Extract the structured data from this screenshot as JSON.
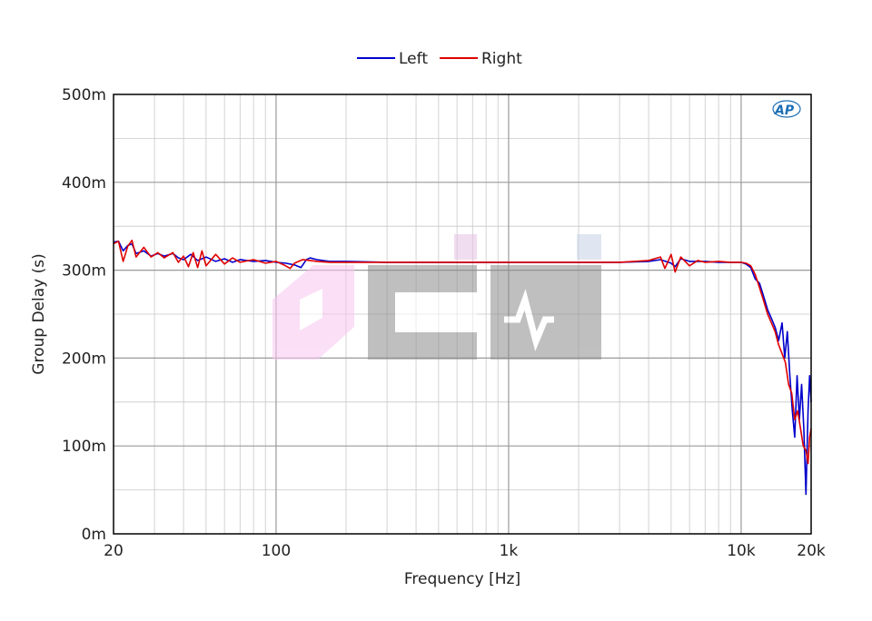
{
  "chart_data": {
    "type": "line",
    "title": "",
    "xlabel": "Frequency [Hz]",
    "ylabel": "Group Delay (s)",
    "xscale": "log",
    "xlim": [
      20,
      20000
    ],
    "ylim": [
      0,
      0.5
    ],
    "xticks": [
      {
        "value": 20,
        "label": "20"
      },
      {
        "value": 100,
        "label": "100"
      },
      {
        "value": 1000,
        "label": "1k"
      },
      {
        "value": 10000,
        "label": "10k"
      },
      {
        "value": 20000,
        "label": "20k"
      }
    ],
    "yticks": [
      {
        "value": 0,
        "label": "0m"
      },
      {
        "value": 0.1,
        "label": "100m"
      },
      {
        "value": 0.2,
        "label": "200m"
      },
      {
        "value": 0.3,
        "label": "300m"
      },
      {
        "value": 0.4,
        "label": "400m"
      },
      {
        "value": 0.5,
        "label": "500m"
      }
    ],
    "grid": true,
    "legend_position": "top-center",
    "series": [
      {
        "name": "Left",
        "color": "#0000cc",
        "points": [
          [
            20,
            0.332
          ],
          [
            21,
            0.333
          ],
          [
            22,
            0.322
          ],
          [
            23,
            0.328
          ],
          [
            24,
            0.33
          ],
          [
            25,
            0.319
          ],
          [
            27,
            0.322
          ],
          [
            29,
            0.316
          ],
          [
            31,
            0.319
          ],
          [
            33,
            0.316
          ],
          [
            36,
            0.319
          ],
          [
            38,
            0.314
          ],
          [
            40,
            0.312
          ],
          [
            43,
            0.318
          ],
          [
            46,
            0.311
          ],
          [
            50,
            0.315
          ],
          [
            55,
            0.31
          ],
          [
            60,
            0.313
          ],
          [
            65,
            0.309
          ],
          [
            70,
            0.312
          ],
          [
            80,
            0.31
          ],
          [
            90,
            0.311
          ],
          [
            100,
            0.309
          ],
          [
            110,
            0.308
          ],
          [
            120,
            0.306
          ],
          [
            128,
            0.303
          ],
          [
            135,
            0.312
          ],
          [
            140,
            0.314
          ],
          [
            150,
            0.312
          ],
          [
            170,
            0.31
          ],
          [
            200,
            0.31
          ],
          [
            300,
            0.309
          ],
          [
            500,
            0.309
          ],
          [
            700,
            0.309
          ],
          [
            1000,
            0.309
          ],
          [
            1500,
            0.309
          ],
          [
            2000,
            0.309
          ],
          [
            3000,
            0.309
          ],
          [
            4000,
            0.31
          ],
          [
            4500,
            0.312
          ],
          [
            5000,
            0.308
          ],
          [
            5200,
            0.304
          ],
          [
            5500,
            0.313
          ],
          [
            6000,
            0.31
          ],
          [
            7000,
            0.31
          ],
          [
            8000,
            0.309
          ],
          [
            9000,
            0.309
          ],
          [
            10000,
            0.309
          ],
          [
            10500,
            0.307
          ],
          [
            11000,
            0.303
          ],
          [
            11500,
            0.29
          ],
          [
            12000,
            0.285
          ],
          [
            12500,
            0.27
          ],
          [
            13000,
            0.255
          ],
          [
            13500,
            0.245
          ],
          [
            14000,
            0.235
          ],
          [
            14500,
            0.22
          ],
          [
            15000,
            0.24
          ],
          [
            15400,
            0.2
          ],
          [
            15800,
            0.23
          ],
          [
            16200,
            0.18
          ],
          [
            16600,
            0.14
          ],
          [
            17000,
            0.11
          ],
          [
            17400,
            0.18
          ],
          [
            17800,
            0.13
          ],
          [
            18200,
            0.17
          ],
          [
            18600,
            0.12
          ],
          [
            19000,
            0.045
          ],
          [
            19400,
            0.14
          ],
          [
            19700,
            0.18
          ],
          [
            20000,
            0.15
          ]
        ]
      },
      {
        "name": "Right",
        "color": "#e00000",
        "points": [
          [
            20,
            0.33
          ],
          [
            21,
            0.333
          ],
          [
            22,
            0.31
          ],
          [
            23,
            0.327
          ],
          [
            24,
            0.334
          ],
          [
            25,
            0.315
          ],
          [
            27,
            0.326
          ],
          [
            29,
            0.315
          ],
          [
            31,
            0.32
          ],
          [
            33,
            0.314
          ],
          [
            36,
            0.32
          ],
          [
            38,
            0.309
          ],
          [
            40,
            0.316
          ],
          [
            42,
            0.304
          ],
          [
            44,
            0.32
          ],
          [
            46,
            0.303
          ],
          [
            48,
            0.322
          ],
          [
            50,
            0.305
          ],
          [
            55,
            0.318
          ],
          [
            60,
            0.307
          ],
          [
            65,
            0.314
          ],
          [
            70,
            0.309
          ],
          [
            80,
            0.312
          ],
          [
            90,
            0.308
          ],
          [
            100,
            0.31
          ],
          [
            110,
            0.305
          ],
          [
            115,
            0.302
          ],
          [
            120,
            0.308
          ],
          [
            130,
            0.312
          ],
          [
            140,
            0.311
          ],
          [
            150,
            0.31
          ],
          [
            170,
            0.309
          ],
          [
            200,
            0.309
          ],
          [
            300,
            0.309
          ],
          [
            500,
            0.309
          ],
          [
            700,
            0.309
          ],
          [
            1000,
            0.309
          ],
          [
            1500,
            0.309
          ],
          [
            2000,
            0.309
          ],
          [
            3000,
            0.309
          ],
          [
            4000,
            0.311
          ],
          [
            4500,
            0.315
          ],
          [
            4700,
            0.302
          ],
          [
            5000,
            0.318
          ],
          [
            5200,
            0.298
          ],
          [
            5500,
            0.315
          ],
          [
            6000,
            0.305
          ],
          [
            6500,
            0.311
          ],
          [
            7000,
            0.309
          ],
          [
            8000,
            0.31
          ],
          [
            9000,
            0.309
          ],
          [
            10000,
            0.309
          ],
          [
            10500,
            0.308
          ],
          [
            11000,
            0.305
          ],
          [
            11500,
            0.295
          ],
          [
            12000,
            0.28
          ],
          [
            12500,
            0.265
          ],
          [
            13000,
            0.25
          ],
          [
            13500,
            0.24
          ],
          [
            14000,
            0.23
          ],
          [
            14500,
            0.215
          ],
          [
            15000,
            0.205
          ],
          [
            15500,
            0.195
          ],
          [
            16000,
            0.17
          ],
          [
            16500,
            0.16
          ],
          [
            17000,
            0.13
          ],
          [
            17500,
            0.14
          ],
          [
            18000,
            0.12
          ],
          [
            18500,
            0.1
          ],
          [
            19000,
            0.095
          ],
          [
            19400,
            0.08
          ],
          [
            19700,
            0.11
          ],
          [
            20000,
            0.12
          ]
        ]
      }
    ]
  }
}
